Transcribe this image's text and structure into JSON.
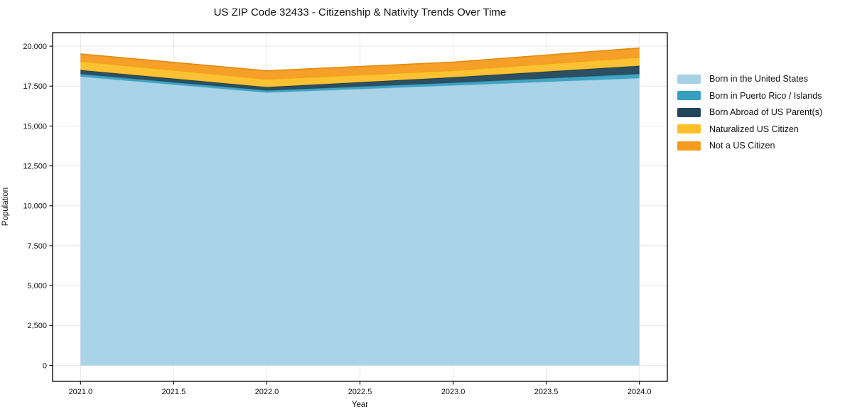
{
  "chart_data": {
    "type": "area",
    "stacked": true,
    "title": "US ZIP Code 32433 - Citizenship & Nativity Trends Over Time",
    "xlabel": "Year",
    "ylabel": "Population",
    "x": [
      2021,
      2022,
      2023,
      2024
    ],
    "series": [
      {
        "name": "Born in the United States",
        "color": "#a6d1e6",
        "edge_color": "#8fc3dc",
        "values": [
          18100,
          17100,
          17550,
          18000
        ]
      },
      {
        "name": "Born in Puerto Rico / Islands",
        "color": "#379fc0",
        "edge_color": "#2f8aa8",
        "values": [
          160,
          130,
          165,
          265
        ]
      },
      {
        "name": "Born Abroad of US Parent(s)",
        "color": "#21465a",
        "edge_color": "#1b3a4b",
        "values": [
          250,
          210,
          340,
          505
        ]
      },
      {
        "name": "Naturalized US Citizen",
        "color": "#fcbf29",
        "edge_color": "#edae14",
        "values": [
          545,
          490,
          420,
          530
        ]
      },
      {
        "name": "Not a US Citizen",
        "color": "#f59b1e",
        "edge_color": "#e18a0f",
        "values": [
          460,
          530,
          530,
          590
        ]
      }
    ],
    "xticks": [
      2021.0,
      2021.5,
      2022.0,
      2022.5,
      2023.0,
      2023.5,
      2024.0
    ],
    "xtick_labels": [
      "2021.0",
      "2021.5",
      "2022.0",
      "2022.5",
      "2023.0",
      "2023.5",
      "2024.0"
    ],
    "yticks": [
      0,
      2500,
      5000,
      7500,
      10000,
      12500,
      15000,
      17500,
      20000
    ],
    "ytick_labels": [
      "0",
      "2,500",
      "5,000",
      "7,500",
      "10,000",
      "12,500",
      "15,000",
      "17,500",
      "20,000"
    ],
    "xlim": [
      2020.85,
      2024.15
    ],
    "ylim": [
      -1000,
      20850
    ],
    "grid": true,
    "grid_color": "#e4e4e9",
    "spine_color": "#000000",
    "legend_position": "right"
  }
}
